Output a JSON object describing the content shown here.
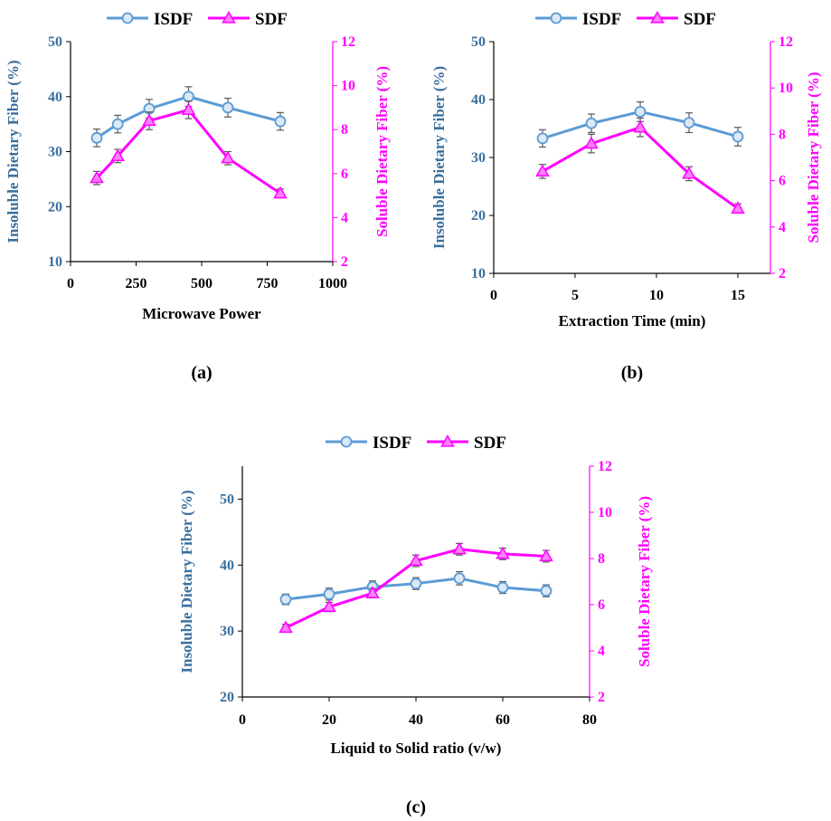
{
  "colors": {
    "isdf": "#5b9bd5",
    "isdf_marker_fill": "#dbe8f5",
    "sdf": "#ff00ff",
    "left_axis_text": "#3a6f9e",
    "right_axis": "#ff00ff",
    "errorbar": "#595959"
  },
  "chart_data": [
    {
      "type": "line",
      "panel_label": "(a)",
      "legend": [
        "ISDF",
        "SDF"
      ],
      "xlabel": "Microwave Power",
      "ylabel": "Insoluble Dietary Fiber (%)",
      "y2label": "Soluble Dietary Fiber (%)",
      "xlim": [
        0,
        1000
      ],
      "xticks": [
        0,
        250,
        500,
        750,
        1000
      ],
      "ylim": [
        10,
        50
      ],
      "yticks": [
        10,
        20,
        30,
        40,
        50
      ],
      "y2lim": [
        2,
        12
      ],
      "y2ticks": [
        2,
        4,
        6,
        8,
        10,
        12
      ],
      "series": [
        {
          "name": "ISDF",
          "axis": "left",
          "marker": "circle",
          "x": [
            100,
            180,
            300,
            450,
            600,
            800
          ],
          "y": [
            32.5,
            35.0,
            37.8,
            40.0,
            38.0,
            35.5
          ],
          "err": [
            1.6,
            1.6,
            1.7,
            1.8,
            1.7,
            1.6
          ]
        },
        {
          "name": "SDF",
          "axis": "right",
          "marker": "triangle",
          "x": [
            100,
            180,
            300,
            450,
            600,
            800
          ],
          "y": [
            5.8,
            6.8,
            8.4,
            8.9,
            6.7,
            5.1
          ],
          "err": [
            0.3,
            0.3,
            0.4,
            0.4,
            0.3,
            0.2
          ]
        }
      ]
    },
    {
      "type": "line",
      "panel_label": "(b)",
      "legend": [
        "ISDF",
        "SDF"
      ],
      "xlabel": "Extraction Time (min)",
      "ylabel": "Insoluble Dietary Fiber (%)",
      "y2label": "Soluble Dietary Fiber (%)",
      "xlim": [
        0,
        17
      ],
      "xticks": [
        0,
        5,
        10,
        15
      ],
      "ylim": [
        10,
        50
      ],
      "yticks": [
        10,
        20,
        30,
        40,
        50
      ],
      "y2lim": [
        2,
        12
      ],
      "y2ticks": [
        2,
        4,
        6,
        8,
        10,
        12
      ],
      "series": [
        {
          "name": "ISDF",
          "axis": "left",
          "marker": "circle",
          "x": [
            3,
            6,
            9,
            12,
            15
          ],
          "y": [
            33.3,
            35.9,
            37.9,
            36.0,
            33.6
          ],
          "err": [
            1.5,
            1.6,
            1.7,
            1.7,
            1.6
          ]
        },
        {
          "name": "SDF",
          "axis": "right",
          "marker": "triangle",
          "x": [
            3,
            6,
            9,
            12,
            15
          ],
          "y": [
            6.4,
            7.6,
            8.3,
            6.3,
            4.8
          ],
          "err": [
            0.3,
            0.4,
            0.4,
            0.3,
            0.2
          ]
        }
      ]
    },
    {
      "type": "line",
      "panel_label": "(c)",
      "legend": [
        "ISDF",
        "SDF"
      ],
      "xlabel": "Liquid to Solid ratio (v/w)",
      "ylabel": "Insoluble Dietary Fiber (%)",
      "y2label": "Soluble Dietary Fiber (%)",
      "xlim": [
        0,
        80
      ],
      "xticks": [
        0,
        20,
        40,
        60,
        80
      ],
      "ylim": [
        20,
        55
      ],
      "yticks": [
        20,
        30,
        40,
        50
      ],
      "y2lim": [
        2,
        12
      ],
      "y2ticks": [
        2,
        4,
        6,
        8,
        10,
        12
      ],
      "series": [
        {
          "name": "ISDF",
          "axis": "left",
          "marker": "circle",
          "x": [
            10,
            20,
            30,
            40,
            50,
            60,
            70
          ],
          "y": [
            34.8,
            35.6,
            36.7,
            37.2,
            38.0,
            36.6,
            36.1
          ],
          "err": [
            0.8,
            0.9,
            0.9,
            0.9,
            1.0,
            0.9,
            0.9
          ]
        },
        {
          "name": "SDF",
          "axis": "right",
          "marker": "triangle",
          "x": [
            10,
            20,
            30,
            40,
            50,
            60,
            70
          ],
          "y": [
            5.0,
            5.9,
            6.5,
            7.9,
            8.4,
            8.2,
            8.1
          ],
          "err": [
            0.15,
            0.2,
            0.2,
            0.25,
            0.25,
            0.25,
            0.25
          ]
        }
      ]
    }
  ]
}
